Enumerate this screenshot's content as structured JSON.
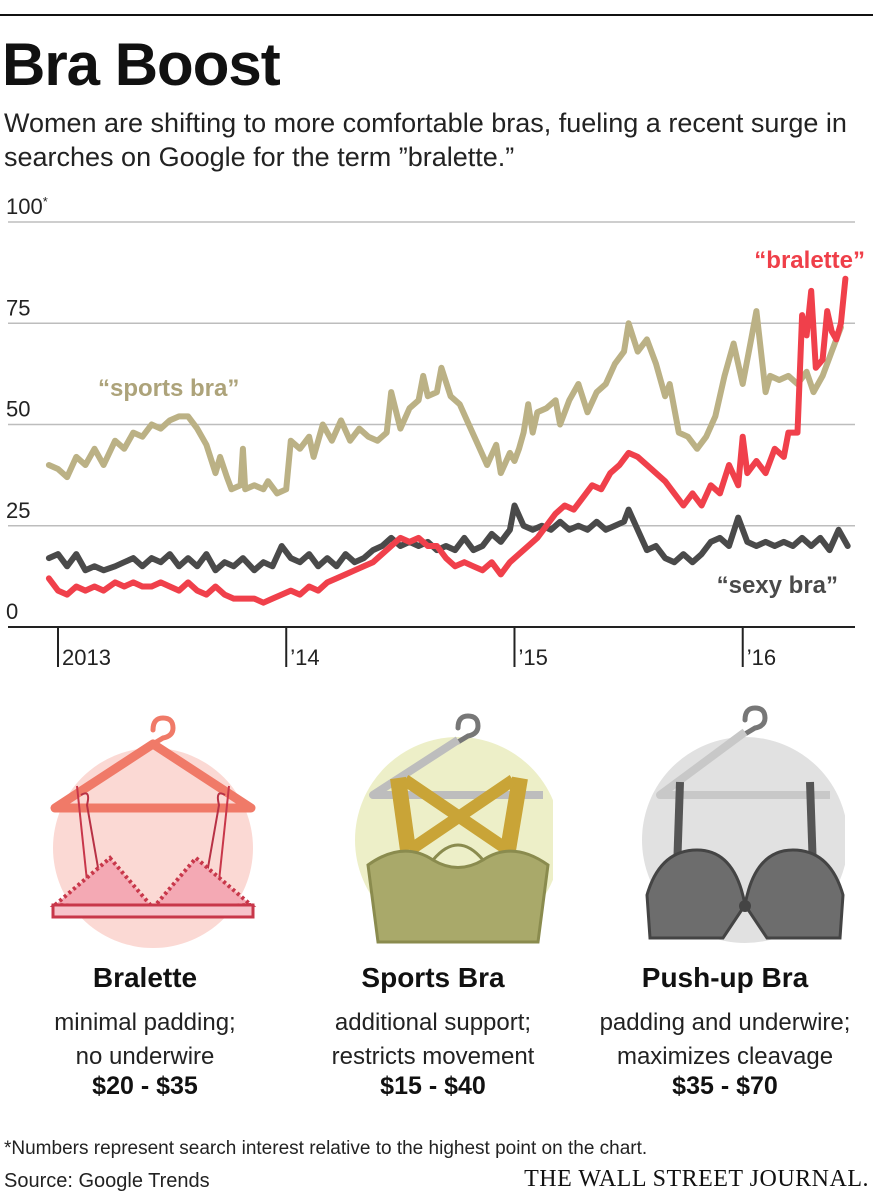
{
  "title": "Bra Boost",
  "subtitle": "Women are shifting to more comfortable bras, fueling a recent surge in searches on Google for the term ”bralette.”",
  "chart_data": {
    "type": "line",
    "ylim": [
      0,
      100
    ],
    "yticks": [
      {
        "value": 100,
        "label": "100",
        "mark": "*"
      },
      {
        "value": 75,
        "label": "75",
        "mark": ""
      },
      {
        "value": 50,
        "label": "50",
        "mark": ""
      },
      {
        "value": 25,
        "label": "25",
        "mark": ""
      },
      {
        "value": 0,
        "label": "0",
        "mark": ""
      }
    ],
    "xlim": [
      2013.0,
      2016.47
    ],
    "xticks": [
      {
        "value": 2013.0,
        "label": "2013"
      },
      {
        "value": 2014.0,
        "label": "’14"
      },
      {
        "value": 2015.0,
        "label": "’15"
      },
      {
        "value": 2016.0,
        "label": "’16"
      }
    ],
    "grid": true,
    "series": [
      {
        "name": "“sports bra”",
        "color": "#bbb185",
        "label_color": "#ada37a",
        "points": [
          [
            2012.96,
            40
          ],
          [
            2013.0,
            39
          ],
          [
            2013.04,
            37
          ],
          [
            2013.08,
            42
          ],
          [
            2013.12,
            40
          ],
          [
            2013.16,
            44
          ],
          [
            2013.2,
            40
          ],
          [
            2013.25,
            46
          ],
          [
            2013.29,
            44
          ],
          [
            2013.33,
            48
          ],
          [
            2013.37,
            47
          ],
          [
            2013.41,
            50
          ],
          [
            2013.45,
            49
          ],
          [
            2013.49,
            51
          ],
          [
            2013.53,
            52
          ],
          [
            2013.57,
            52
          ],
          [
            2013.61,
            49
          ],
          [
            2013.65,
            45
          ],
          [
            2013.69,
            38
          ],
          [
            2013.71,
            42
          ],
          [
            2013.74,
            37
          ],
          [
            2013.76,
            34
          ],
          [
            2013.8,
            35
          ],
          [
            2013.81,
            44
          ],
          [
            2013.82,
            34
          ],
          [
            2013.86,
            35
          ],
          [
            2013.9,
            34
          ],
          [
            2013.92,
            36
          ],
          [
            2013.96,
            33
          ],
          [
            2014.0,
            34
          ],
          [
            2014.02,
            46
          ],
          [
            2014.06,
            44
          ],
          [
            2014.1,
            47
          ],
          [
            2014.12,
            42
          ],
          [
            2014.16,
            50
          ],
          [
            2014.2,
            46
          ],
          [
            2014.24,
            51
          ],
          [
            2014.28,
            46
          ],
          [
            2014.32,
            49
          ],
          [
            2014.36,
            47
          ],
          [
            2014.4,
            46
          ],
          [
            2014.44,
            48
          ],
          [
            2014.46,
            58
          ],
          [
            2014.5,
            49
          ],
          [
            2014.54,
            54
          ],
          [
            2014.58,
            56
          ],
          [
            2014.6,
            62
          ],
          [
            2014.62,
            57
          ],
          [
            2014.66,
            58
          ],
          [
            2014.68,
            64
          ],
          [
            2014.72,
            57
          ],
          [
            2014.76,
            55
          ],
          [
            2014.8,
            50
          ],
          [
            2014.84,
            45
          ],
          [
            2014.88,
            40
          ],
          [
            2014.92,
            45
          ],
          [
            2014.94,
            38
          ],
          [
            2014.98,
            43
          ],
          [
            2015.0,
            41
          ],
          [
            2015.02,
            44
          ],
          [
            2015.04,
            48
          ],
          [
            2015.06,
            55
          ],
          [
            2015.08,
            48
          ],
          [
            2015.1,
            53
          ],
          [
            2015.14,
            54
          ],
          [
            2015.18,
            56
          ],
          [
            2015.2,
            50
          ],
          [
            2015.24,
            56
          ],
          [
            2015.28,
            60
          ],
          [
            2015.32,
            53
          ],
          [
            2015.36,
            58
          ],
          [
            2015.4,
            60
          ],
          [
            2015.44,
            65
          ],
          [
            2015.48,
            68
          ],
          [
            2015.5,
            75
          ],
          [
            2015.54,
            68
          ],
          [
            2015.58,
            71
          ],
          [
            2015.62,
            65
          ],
          [
            2015.66,
            57
          ],
          [
            2015.68,
            60
          ],
          [
            2015.72,
            48
          ],
          [
            2015.76,
            47
          ],
          [
            2015.8,
            44
          ],
          [
            2015.84,
            47
          ],
          [
            2015.88,
            52
          ],
          [
            2015.92,
            62
          ],
          [
            2015.96,
            70
          ],
          [
            2016.0,
            60
          ],
          [
            2016.04,
            72
          ],
          [
            2016.06,
            78
          ],
          [
            2016.1,
            58
          ],
          [
            2016.12,
            62
          ],
          [
            2016.16,
            61
          ],
          [
            2016.2,
            62
          ],
          [
            2016.24,
            60
          ],
          [
            2016.28,
            63
          ],
          [
            2016.31,
            58
          ],
          [
            2016.35,
            62
          ],
          [
            2016.39,
            68
          ],
          [
            2016.43,
            74
          ]
        ]
      },
      {
        "name": "“bralette”",
        "color": "#f0404b",
        "label_color": "#ef3f49",
        "points": [
          [
            2012.96,
            12
          ],
          [
            2013.0,
            9
          ],
          [
            2013.04,
            8
          ],
          [
            2013.08,
            10
          ],
          [
            2013.12,
            9
          ],
          [
            2013.16,
            10
          ],
          [
            2013.2,
            9
          ],
          [
            2013.25,
            11
          ],
          [
            2013.29,
            10
          ],
          [
            2013.33,
            11
          ],
          [
            2013.37,
            10
          ],
          [
            2013.41,
            10
          ],
          [
            2013.45,
            11
          ],
          [
            2013.49,
            10
          ],
          [
            2013.53,
            9
          ],
          [
            2013.57,
            11
          ],
          [
            2013.61,
            9
          ],
          [
            2013.65,
            8
          ],
          [
            2013.69,
            10
          ],
          [
            2013.73,
            8
          ],
          [
            2013.77,
            7
          ],
          [
            2013.81,
            7
          ],
          [
            2013.86,
            7
          ],
          [
            2013.9,
            6
          ],
          [
            2013.94,
            7
          ],
          [
            2013.98,
            8
          ],
          [
            2014.02,
            9
          ],
          [
            2014.06,
            8
          ],
          [
            2014.1,
            10
          ],
          [
            2014.14,
            9
          ],
          [
            2014.18,
            11
          ],
          [
            2014.22,
            12
          ],
          [
            2014.26,
            13
          ],
          [
            2014.3,
            14
          ],
          [
            2014.34,
            15
          ],
          [
            2014.38,
            16
          ],
          [
            2014.42,
            18
          ],
          [
            2014.46,
            20
          ],
          [
            2014.5,
            22
          ],
          [
            2014.54,
            21
          ],
          [
            2014.58,
            22
          ],
          [
            2014.62,
            20
          ],
          [
            2014.66,
            20
          ],
          [
            2014.7,
            17
          ],
          [
            2014.74,
            15
          ],
          [
            2014.78,
            16
          ],
          [
            2014.82,
            15
          ],
          [
            2014.86,
            14
          ],
          [
            2014.9,
            16
          ],
          [
            2014.94,
            13
          ],
          [
            2014.98,
            16
          ],
          [
            2015.02,
            18
          ],
          [
            2015.06,
            20
          ],
          [
            2015.1,
            22
          ],
          [
            2015.14,
            25
          ],
          [
            2015.18,
            28
          ],
          [
            2015.22,
            30
          ],
          [
            2015.26,
            29
          ],
          [
            2015.3,
            32
          ],
          [
            2015.34,
            35
          ],
          [
            2015.38,
            34
          ],
          [
            2015.42,
            38
          ],
          [
            2015.46,
            40
          ],
          [
            2015.5,
            43
          ],
          [
            2015.54,
            42
          ],
          [
            2015.58,
            40
          ],
          [
            2015.62,
            38
          ],
          [
            2015.66,
            36
          ],
          [
            2015.7,
            33
          ],
          [
            2015.74,
            30
          ],
          [
            2015.78,
            33
          ],
          [
            2015.82,
            30
          ],
          [
            2015.86,
            35
          ],
          [
            2015.9,
            33
          ],
          [
            2015.94,
            40
          ],
          [
            2015.98,
            35
          ],
          [
            2016.0,
            47
          ],
          [
            2016.02,
            38
          ],
          [
            2016.06,
            41
          ],
          [
            2016.1,
            38
          ],
          [
            2016.14,
            44
          ],
          [
            2016.18,
            42
          ],
          [
            2016.2,
            48
          ],
          [
            2016.24,
            48
          ],
          [
            2016.26,
            77
          ],
          [
            2016.28,
            72
          ],
          [
            2016.3,
            83
          ],
          [
            2016.32,
            64
          ],
          [
            2016.35,
            66
          ],
          [
            2016.37,
            78
          ],
          [
            2016.39,
            73
          ],
          [
            2016.41,
            71
          ],
          [
            2016.43,
            75
          ],
          [
            2016.45,
            86
          ]
        ]
      },
      {
        "name": "“sexy bra”",
        "color": "#4a4a4a",
        "label_color": "#4a4a4a",
        "points": [
          [
            2012.96,
            17
          ],
          [
            2013.0,
            18
          ],
          [
            2013.04,
            15
          ],
          [
            2013.08,
            18
          ],
          [
            2013.12,
            14
          ],
          [
            2013.16,
            15
          ],
          [
            2013.2,
            14
          ],
          [
            2013.25,
            15
          ],
          [
            2013.29,
            16
          ],
          [
            2013.33,
            17
          ],
          [
            2013.37,
            15
          ],
          [
            2013.41,
            17
          ],
          [
            2013.45,
            16
          ],
          [
            2013.49,
            18
          ],
          [
            2013.53,
            15
          ],
          [
            2013.57,
            17
          ],
          [
            2013.61,
            15
          ],
          [
            2013.65,
            18
          ],
          [
            2013.69,
            14
          ],
          [
            2013.73,
            16
          ],
          [
            2013.77,
            15
          ],
          [
            2013.81,
            17
          ],
          [
            2013.86,
            14
          ],
          [
            2013.9,
            16
          ],
          [
            2013.94,
            15
          ],
          [
            2013.98,
            20
          ],
          [
            2014.02,
            17
          ],
          [
            2014.06,
            16
          ],
          [
            2014.1,
            18
          ],
          [
            2014.14,
            15
          ],
          [
            2014.18,
            17
          ],
          [
            2014.22,
            15
          ],
          [
            2014.26,
            18
          ],
          [
            2014.3,
            16
          ],
          [
            2014.34,
            17
          ],
          [
            2014.38,
            19
          ],
          [
            2014.42,
            20
          ],
          [
            2014.46,
            22
          ],
          [
            2014.5,
            20
          ],
          [
            2014.54,
            21
          ],
          [
            2014.58,
            20
          ],
          [
            2014.62,
            21
          ],
          [
            2014.66,
            19
          ],
          [
            2014.7,
            20
          ],
          [
            2014.74,
            19
          ],
          [
            2014.78,
            22
          ],
          [
            2014.82,
            19
          ],
          [
            2014.86,
            20
          ],
          [
            2014.9,
            23
          ],
          [
            2014.94,
            21
          ],
          [
            2014.98,
            24
          ],
          [
            2015.0,
            30
          ],
          [
            2015.04,
            25
          ],
          [
            2015.08,
            24
          ],
          [
            2015.12,
            25
          ],
          [
            2015.16,
            24
          ],
          [
            2015.2,
            26
          ],
          [
            2015.24,
            24
          ],
          [
            2015.28,
            25
          ],
          [
            2015.32,
            24
          ],
          [
            2015.36,
            26
          ],
          [
            2015.4,
            24
          ],
          [
            2015.44,
            25
          ],
          [
            2015.48,
            26
          ],
          [
            2015.5,
            29
          ],
          [
            2015.54,
            24
          ],
          [
            2015.58,
            19
          ],
          [
            2015.62,
            20
          ],
          [
            2015.66,
            17
          ],
          [
            2015.7,
            16
          ],
          [
            2015.74,
            18
          ],
          [
            2015.78,
            16
          ],
          [
            2015.82,
            18
          ],
          [
            2015.86,
            21
          ],
          [
            2015.9,
            22
          ],
          [
            2015.94,
            20
          ],
          [
            2015.98,
            27
          ],
          [
            2016.02,
            21
          ],
          [
            2016.06,
            20
          ],
          [
            2016.1,
            21
          ],
          [
            2016.14,
            20
          ],
          [
            2016.18,
            21
          ],
          [
            2016.22,
            20
          ],
          [
            2016.26,
            22
          ],
          [
            2016.3,
            20
          ],
          [
            2016.34,
            22
          ],
          [
            2016.38,
            19
          ],
          [
            2016.42,
            24
          ],
          [
            2016.46,
            20
          ]
        ]
      }
    ]
  },
  "items": [
    {
      "name": "Bralette",
      "desc1": "minimal padding;",
      "desc2": "no underwire",
      "price": "$20 - $35"
    },
    {
      "name": "Sports Bra",
      "desc1": "additional support;",
      "desc2": "restricts movement",
      "price": "$15 - $40"
    },
    {
      "name": "Push-up Bra",
      "desc1": "padding and underwire;",
      "desc2": "maximizes cleavage",
      "price": "$35 - $70"
    }
  ],
  "footnote": "*Numbers represent search interest relative to the highest point on the chart.",
  "source": "Source: Google Trends",
  "publisher": "THE WALL STREET JOURNAL."
}
